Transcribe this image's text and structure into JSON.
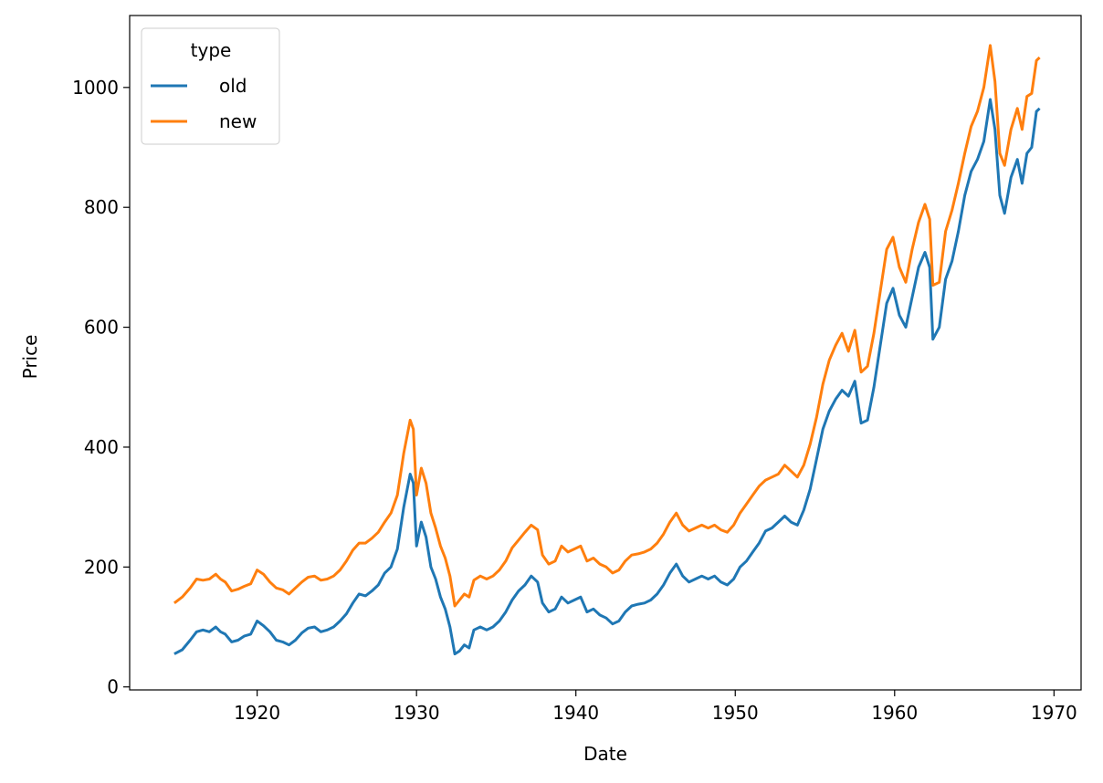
{
  "chart_data": {
    "type": "line",
    "xlabel": "Date",
    "ylabel": "Price",
    "xlim": [
      1912.0,
      1971.7
    ],
    "ylim": [
      -5,
      1120
    ],
    "x_ticks": [
      1920,
      1930,
      1940,
      1950,
      1960,
      1970
    ],
    "y_ticks": [
      0,
      200,
      400,
      600,
      800,
      1000
    ],
    "grid": false,
    "legend": {
      "title": "type",
      "placement": "top-left"
    },
    "series": [
      {
        "name": "old",
        "color": "#1f77b4",
        "points": [
          [
            1914.8,
            55
          ],
          [
            1915.3,
            62
          ],
          [
            1915.8,
            78
          ],
          [
            1916.2,
            92
          ],
          [
            1916.6,
            95
          ],
          [
            1917.0,
            92
          ],
          [
            1917.4,
            100
          ],
          [
            1917.7,
            92
          ],
          [
            1918.0,
            88
          ],
          [
            1918.4,
            75
          ],
          [
            1918.8,
            78
          ],
          [
            1919.2,
            85
          ],
          [
            1919.6,
            88
          ],
          [
            1920.0,
            110
          ],
          [
            1920.4,
            102
          ],
          [
            1920.8,
            92
          ],
          [
            1921.2,
            78
          ],
          [
            1921.6,
            75
          ],
          [
            1922.0,
            70
          ],
          [
            1922.4,
            78
          ],
          [
            1922.8,
            90
          ],
          [
            1923.2,
            98
          ],
          [
            1923.6,
            100
          ],
          [
            1924.0,
            92
          ],
          [
            1924.4,
            95
          ],
          [
            1924.8,
            100
          ],
          [
            1925.2,
            110
          ],
          [
            1925.6,
            122
          ],
          [
            1926.0,
            140
          ],
          [
            1926.4,
            155
          ],
          [
            1926.8,
            152
          ],
          [
            1927.2,
            160
          ],
          [
            1927.6,
            170
          ],
          [
            1928.0,
            190
          ],
          [
            1928.4,
            200
          ],
          [
            1928.8,
            230
          ],
          [
            1929.2,
            300
          ],
          [
            1929.6,
            355
          ],
          [
            1929.8,
            340
          ],
          [
            1930.0,
            235
          ],
          [
            1930.3,
            275
          ],
          [
            1930.6,
            250
          ],
          [
            1930.9,
            200
          ],
          [
            1931.2,
            180
          ],
          [
            1931.5,
            150
          ],
          [
            1931.8,
            130
          ],
          [
            1932.1,
            100
          ],
          [
            1932.4,
            55
          ],
          [
            1932.7,
            60
          ],
          [
            1933.0,
            70
          ],
          [
            1933.3,
            65
          ],
          [
            1933.6,
            95
          ],
          [
            1934.0,
            100
          ],
          [
            1934.4,
            95
          ],
          [
            1934.8,
            100
          ],
          [
            1935.2,
            110
          ],
          [
            1935.6,
            125
          ],
          [
            1936.0,
            145
          ],
          [
            1936.4,
            160
          ],
          [
            1936.8,
            170
          ],
          [
            1937.2,
            185
          ],
          [
            1937.6,
            175
          ],
          [
            1937.9,
            140
          ],
          [
            1938.3,
            125
          ],
          [
            1938.7,
            130
          ],
          [
            1939.1,
            150
          ],
          [
            1939.5,
            140
          ],
          [
            1939.9,
            145
          ],
          [
            1940.3,
            150
          ],
          [
            1940.7,
            125
          ],
          [
            1941.1,
            130
          ],
          [
            1941.5,
            120
          ],
          [
            1941.9,
            115
          ],
          [
            1942.3,
            105
          ],
          [
            1942.7,
            110
          ],
          [
            1943.1,
            125
          ],
          [
            1943.5,
            135
          ],
          [
            1943.9,
            138
          ],
          [
            1944.3,
            140
          ],
          [
            1944.7,
            145
          ],
          [
            1945.1,
            155
          ],
          [
            1945.5,
            170
          ],
          [
            1945.9,
            190
          ],
          [
            1946.3,
            205
          ],
          [
            1946.7,
            185
          ],
          [
            1947.1,
            175
          ],
          [
            1947.5,
            180
          ],
          [
            1947.9,
            185
          ],
          [
            1948.3,
            180
          ],
          [
            1948.7,
            185
          ],
          [
            1949.1,
            175
          ],
          [
            1949.5,
            170
          ],
          [
            1949.9,
            180
          ],
          [
            1950.3,
            200
          ],
          [
            1950.7,
            210
          ],
          [
            1951.1,
            225
          ],
          [
            1951.5,
            240
          ],
          [
            1951.9,
            260
          ],
          [
            1952.3,
            265
          ],
          [
            1952.7,
            275
          ],
          [
            1953.1,
            285
          ],
          [
            1953.5,
            275
          ],
          [
            1953.9,
            270
          ],
          [
            1954.3,
            295
          ],
          [
            1954.7,
            330
          ],
          [
            1955.1,
            380
          ],
          [
            1955.5,
            430
          ],
          [
            1955.9,
            460
          ],
          [
            1956.3,
            480
          ],
          [
            1956.7,
            495
          ],
          [
            1957.1,
            485
          ],
          [
            1957.5,
            510
          ],
          [
            1957.9,
            440
          ],
          [
            1958.3,
            445
          ],
          [
            1958.7,
            500
          ],
          [
            1959.1,
            570
          ],
          [
            1959.5,
            640
          ],
          [
            1959.9,
            665
          ],
          [
            1960.3,
            620
          ],
          [
            1960.7,
            600
          ],
          [
            1961.1,
            650
          ],
          [
            1961.5,
            700
          ],
          [
            1961.9,
            725
          ],
          [
            1962.2,
            700
          ],
          [
            1962.4,
            580
          ],
          [
            1962.8,
            600
          ],
          [
            1963.2,
            680
          ],
          [
            1963.6,
            710
          ],
          [
            1964.0,
            760
          ],
          [
            1964.4,
            820
          ],
          [
            1964.8,
            860
          ],
          [
            1965.2,
            880
          ],
          [
            1965.6,
            910
          ],
          [
            1966.0,
            980
          ],
          [
            1966.3,
            930
          ],
          [
            1966.6,
            820
          ],
          [
            1966.9,
            790
          ],
          [
            1967.3,
            850
          ],
          [
            1967.7,
            880
          ],
          [
            1968.0,
            840
          ],
          [
            1968.3,
            890
          ],
          [
            1968.6,
            900
          ],
          [
            1968.9,
            960
          ],
          [
            1969.1,
            965
          ]
        ]
      },
      {
        "name": "new",
        "color": "#ff7f0e",
        "points": [
          [
            1914.8,
            140
          ],
          [
            1915.3,
            150
          ],
          [
            1915.8,
            165
          ],
          [
            1916.2,
            180
          ],
          [
            1916.6,
            178
          ],
          [
            1917.0,
            180
          ],
          [
            1917.4,
            188
          ],
          [
            1917.7,
            180
          ],
          [
            1918.0,
            175
          ],
          [
            1918.4,
            160
          ],
          [
            1918.8,
            163
          ],
          [
            1919.2,
            168
          ],
          [
            1919.6,
            172
          ],
          [
            1920.0,
            195
          ],
          [
            1920.4,
            188
          ],
          [
            1920.8,
            175
          ],
          [
            1921.2,
            165
          ],
          [
            1921.6,
            162
          ],
          [
            1922.0,
            155
          ],
          [
            1922.4,
            165
          ],
          [
            1922.8,
            175
          ],
          [
            1923.2,
            183
          ],
          [
            1923.6,
            185
          ],
          [
            1924.0,
            178
          ],
          [
            1924.4,
            180
          ],
          [
            1924.8,
            185
          ],
          [
            1925.2,
            195
          ],
          [
            1925.6,
            210
          ],
          [
            1926.0,
            228
          ],
          [
            1926.4,
            240
          ],
          [
            1926.8,
            240
          ],
          [
            1927.2,
            248
          ],
          [
            1927.6,
            258
          ],
          [
            1928.0,
            275
          ],
          [
            1928.4,
            290
          ],
          [
            1928.8,
            320
          ],
          [
            1929.2,
            390
          ],
          [
            1929.6,
            445
          ],
          [
            1929.8,
            430
          ],
          [
            1930.0,
            320
          ],
          [
            1930.3,
            365
          ],
          [
            1930.6,
            340
          ],
          [
            1930.9,
            290
          ],
          [
            1931.2,
            265
          ],
          [
            1931.5,
            235
          ],
          [
            1931.8,
            215
          ],
          [
            1932.1,
            185
          ],
          [
            1932.4,
            135
          ],
          [
            1932.7,
            145
          ],
          [
            1933.0,
            155
          ],
          [
            1933.3,
            150
          ],
          [
            1933.6,
            178
          ],
          [
            1934.0,
            185
          ],
          [
            1934.4,
            180
          ],
          [
            1934.8,
            185
          ],
          [
            1935.2,
            195
          ],
          [
            1935.6,
            210
          ],
          [
            1936.0,
            232
          ],
          [
            1936.4,
            245
          ],
          [
            1936.8,
            258
          ],
          [
            1937.2,
            270
          ],
          [
            1937.6,
            262
          ],
          [
            1937.9,
            220
          ],
          [
            1938.3,
            205
          ],
          [
            1938.7,
            210
          ],
          [
            1939.1,
            235
          ],
          [
            1939.5,
            225
          ],
          [
            1939.9,
            230
          ],
          [
            1940.3,
            235
          ],
          [
            1940.7,
            210
          ],
          [
            1941.1,
            215
          ],
          [
            1941.5,
            205
          ],
          [
            1941.9,
            200
          ],
          [
            1942.3,
            190
          ],
          [
            1942.7,
            195
          ],
          [
            1943.1,
            210
          ],
          [
            1943.5,
            220
          ],
          [
            1943.9,
            222
          ],
          [
            1944.3,
            225
          ],
          [
            1944.7,
            230
          ],
          [
            1945.1,
            240
          ],
          [
            1945.5,
            255
          ],
          [
            1945.9,
            275
          ],
          [
            1946.3,
            290
          ],
          [
            1946.7,
            270
          ],
          [
            1947.1,
            260
          ],
          [
            1947.5,
            265
          ],
          [
            1947.9,
            270
          ],
          [
            1948.3,
            265
          ],
          [
            1948.7,
            270
          ],
          [
            1949.1,
            262
          ],
          [
            1949.5,
            258
          ],
          [
            1949.9,
            270
          ],
          [
            1950.3,
            290
          ],
          [
            1950.7,
            305
          ],
          [
            1951.1,
            320
          ],
          [
            1951.5,
            335
          ],
          [
            1951.9,
            345
          ],
          [
            1952.3,
            350
          ],
          [
            1952.7,
            355
          ],
          [
            1953.1,
            370
          ],
          [
            1953.5,
            360
          ],
          [
            1953.9,
            350
          ],
          [
            1954.3,
            370
          ],
          [
            1954.7,
            405
          ],
          [
            1955.1,
            450
          ],
          [
            1955.5,
            505
          ],
          [
            1955.9,
            545
          ],
          [
            1956.3,
            570
          ],
          [
            1956.7,
            590
          ],
          [
            1957.1,
            560
          ],
          [
            1957.5,
            595
          ],
          [
            1957.9,
            525
          ],
          [
            1958.3,
            535
          ],
          [
            1958.7,
            590
          ],
          [
            1959.1,
            660
          ],
          [
            1959.5,
            730
          ],
          [
            1959.9,
            750
          ],
          [
            1960.3,
            700
          ],
          [
            1960.7,
            675
          ],
          [
            1961.1,
            730
          ],
          [
            1961.5,
            775
          ],
          [
            1961.9,
            805
          ],
          [
            1962.2,
            780
          ],
          [
            1962.4,
            670
          ],
          [
            1962.8,
            675
          ],
          [
            1963.2,
            760
          ],
          [
            1963.6,
            795
          ],
          [
            1964.0,
            840
          ],
          [
            1964.4,
            890
          ],
          [
            1964.8,
            935
          ],
          [
            1965.2,
            960
          ],
          [
            1965.6,
            1000
          ],
          [
            1966.0,
            1070
          ],
          [
            1966.3,
            1010
          ],
          [
            1966.6,
            890
          ],
          [
            1966.9,
            870
          ],
          [
            1967.3,
            930
          ],
          [
            1967.7,
            965
          ],
          [
            1968.0,
            930
          ],
          [
            1968.3,
            985
          ],
          [
            1968.6,
            990
          ],
          [
            1968.9,
            1045
          ],
          [
            1969.1,
            1050
          ]
        ]
      }
    ]
  }
}
